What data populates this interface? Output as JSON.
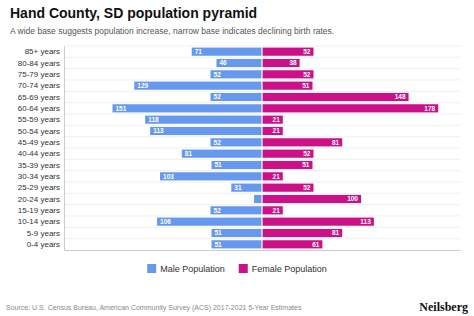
{
  "chart_data": {
    "type": "pyramid",
    "orientation": "horizontal",
    "title": "Hand County, SD population pyramid",
    "subtitle": "A wide base suggests population increase, narrow base indicates declining birth rates.",
    "source": "Source: U.S. Census Bureau, American Community Survey (ACS) 2017-2021 5-Year Estimates",
    "annotations": [
      "Neilsberg"
    ],
    "categories": [
      "0-4 years",
      "5-9 years",
      "10-14 years",
      "15-19 years",
      "20-24 years",
      "25-29 years",
      "30-34 years",
      "35-39 years",
      "40-44 years",
      "45-49 years",
      "50-54 years",
      "55-59 years",
      "60-64 years",
      "65-69 years",
      "70-74 years",
      "75-79 years",
      "80-84 years",
      "85+ years"
    ],
    "series": [
      {
        "name": "Male Population",
        "color": "#6699EE",
        "values": [
          51,
          51,
          106,
          52,
          8,
          31,
          103,
          51,
          81,
          52,
          113,
          118,
          151,
          52,
          129,
          52,
          46,
          71
        ],
        "value_labels": [
          "51",
          "51",
          "106",
          "52",
          null,
          "31",
          "103",
          "51",
          "81",
          "52",
          "113",
          "118",
          "151",
          "52",
          "129",
          "52",
          "46",
          "71"
        ]
      },
      {
        "name": "Female Population",
        "color": "#CC1188",
        "values": [
          61,
          81,
          113,
          21,
          100,
          52,
          21,
          51,
          52,
          81,
          21,
          21,
          178,
          148,
          51,
          52,
          38,
          52
        ],
        "value_labels": [
          "61",
          "81",
          "113",
          "21",
          "100",
          "52",
          "21",
          "51",
          "52",
          "81",
          "21",
          "21",
          "178",
          "148",
          "51",
          "52",
          "38",
          "52"
        ]
      }
    ],
    "xlim": [
      -200,
      200
    ],
    "xticks": [],
    "tick_labels": "y",
    "data_labels": true,
    "grid": true,
    "legend": "bottom"
  }
}
